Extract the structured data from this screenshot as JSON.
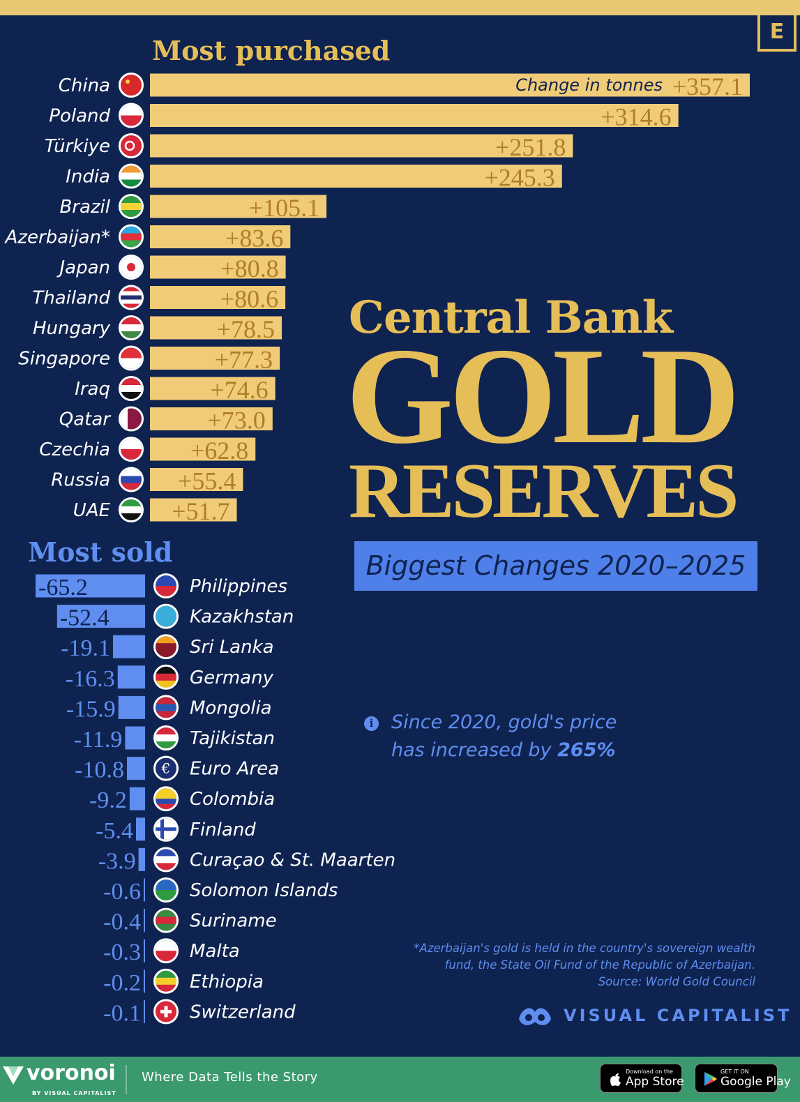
{
  "brand_badge": "E",
  "title": {
    "line1": "Central Bank",
    "line2": "GOLD",
    "line3": "RESERVES"
  },
  "subtitle": "Biggest Changes 2020–2025",
  "note": {
    "prefix": "Since 2020, gold's price",
    "middle": "has increased by",
    "highlight": "265%"
  },
  "footnote": {
    "line1": "*Azerbaijan's gold is held in the country's sovereign wealth",
    "line2": "fund, the State Oil Fund of the Republic of Azerbaijan.",
    "line3": "Source: World Gold Council"
  },
  "publisher": "VISUAL CAPITALIST",
  "footer": {
    "brand": "voronoi",
    "brand_sub": "BY VISUAL CAPITALIST",
    "tagline": "Where Data Tells the Story",
    "app_store_small": "Download on the",
    "app_store_big": "App Store",
    "google_small": "GET IT ON",
    "google_big": "Google Play"
  },
  "colors": {
    "background": "#0f2350",
    "gold": "#e5be58",
    "bar_gold": "#f0cc78",
    "blue": "#5f8ef0",
    "footer": "#3a9a6d"
  },
  "chart_data": [
    {
      "type": "bar",
      "title": "Most purchased",
      "annotation": "Change in tonnes",
      "categories": [
        "China",
        "Poland",
        "Türkiye",
        "India",
        "Brazil",
        "Azerbaijan*",
        "Japan",
        "Thailand",
        "Hungary",
        "Singapore",
        "Iraq",
        "Qatar",
        "Czechia",
        "Russia",
        "UAE"
      ],
      "values": [
        357.1,
        314.6,
        251.8,
        245.3,
        105.1,
        83.6,
        80.8,
        80.6,
        78.5,
        77.3,
        74.6,
        73.0,
        62.8,
        55.4,
        51.7
      ],
      "labels": [
        "+357.1",
        "+314.6",
        "+251.8",
        "+245.3",
        "+105.1",
        "+83.6",
        "+80.8",
        "+80.6",
        "+78.5",
        "+77.3",
        "+74.6",
        "+73.0",
        "+62.8",
        "+55.4",
        "+51.7"
      ],
      "flags": [
        "china-flag",
        "poland-flag",
        "turkiye-flag",
        "india-flag",
        "brazil-flag",
        "azerbaijan-flag",
        "japan-flag",
        "thailand-flag",
        "hungary-flag",
        "singapore-flag",
        "iraq-flag",
        "qatar-flag",
        "czechia-flag",
        "russia-flag",
        "uae-flag"
      ]
    },
    {
      "type": "bar",
      "title": "Most sold",
      "categories": [
        "Philippines",
        "Kazakhstan",
        "Sri Lanka",
        "Germany",
        "Mongolia",
        "Tajikistan",
        "Euro Area",
        "Colombia",
        "Finland",
        "Curaçao & St. Maarten",
        "Solomon Islands",
        "Suriname",
        "Malta",
        "Ethiopia",
        "Switzerland"
      ],
      "values": [
        -65.2,
        -52.4,
        -19.1,
        -16.3,
        -15.9,
        -11.9,
        -10.8,
        -9.2,
        -5.4,
        -3.9,
        -0.6,
        -0.4,
        -0.3,
        -0.2,
        -0.1
      ],
      "labels": [
        "-65.2",
        "-52.4",
        "-19.1",
        "-16.3",
        "-15.9",
        "-11.9",
        "-10.8",
        "-9.2",
        "-5.4",
        "-3.9",
        "-0.6",
        "-0.4",
        "-0.3",
        "-0.2",
        "-0.1"
      ],
      "flags": [
        "philippines-flag",
        "kazakhstan-flag",
        "sri-lanka-flag",
        "germany-flag",
        "mongolia-flag",
        "tajikistan-flag",
        "euro-area-flag",
        "colombia-flag",
        "finland-flag",
        "curacao-flag",
        "solomon-islands-flag",
        "suriname-flag",
        "malta-flag",
        "ethiopia-flag",
        "switzerland-flag"
      ]
    }
  ]
}
